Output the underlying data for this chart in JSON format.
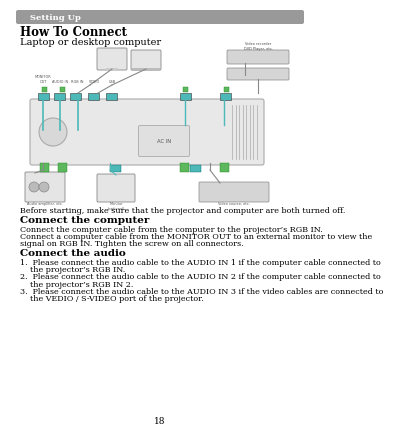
{
  "page_number": "18",
  "background_color": "#ffffff",
  "header_bg": "#999999",
  "header_text": "Setting Up",
  "header_text_color": "#ffffff",
  "title": "How To Connect",
  "subtitle": "Laptop or desktop computer",
  "before_text": "Before starting, make sure that the projector and computer are both turned off.",
  "section1_title": "Connect the computer",
  "section1_line1": "Connect the computer cable from the computer to the projector’s RGB IN.",
  "section1_line2": "Connect a computer cable from the MONITOR OUT to an external monitor to view the",
  "section1_line3": "signal on RGB IN. Tighten the screw on all connectors.",
  "section2_title": "Connect the audio",
  "item1a": "1.  Please connect the audio cable to the AUDIO IN 1 if the computer cable connected to",
  "item1b": "    the projector’s RGB IN.",
  "item2a": "2.  Please connect the audio cable to the AUDIO IN 2 if the computer cable connected to",
  "item2b": "    the projector’s RGB IN 2.",
  "item3a": "3.  Please connect the audio cable to the AUDIO IN 3 if the video cables are connected to",
  "item3b": "    the VEDIO / S-VIDEO port of the projector.",
  "border_color": "#bbbbbb",
  "diagram_bg": "#f8f8f8",
  "proj_color": "#e8e8e8",
  "conn_teal": "#4db8b8",
  "conn_green": "#5db85d",
  "title_fontsize": 8.5,
  "subtitle_fontsize": 7.0,
  "body_fontsize": 5.8,
  "section_title_fontsize": 7.5,
  "header_fontsize": 6.0,
  "page_num_fontsize": 6.5
}
